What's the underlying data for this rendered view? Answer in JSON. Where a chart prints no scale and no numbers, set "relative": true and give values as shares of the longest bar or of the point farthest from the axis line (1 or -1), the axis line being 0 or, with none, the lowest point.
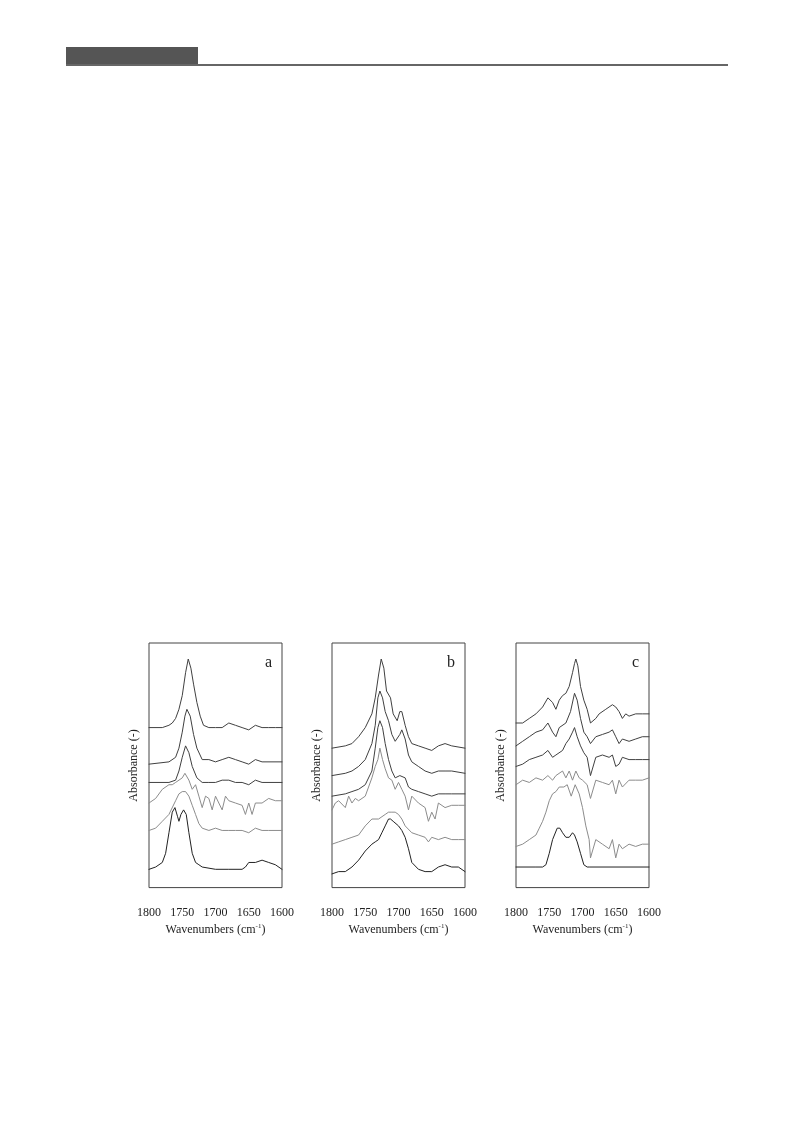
{
  "chart_data": [
    {
      "type": "line",
      "relative": true,
      "xlabel": "Wavenumbers (cm$^{-1}$)",
      "ylabel": "Absorbance (-)",
      "annotations": [
        "a"
      ],
      "xlim": [
        1800,
        1600
      ],
      "xticks": [
        1800,
        1750,
        1700,
        1650,
        1600
      ],
      "grid": false,
      "marker": "none",
      "line_style": "solid",
      "series": [
        {
          "color": "#404040",
          "x": [
            1800,
            1780,
            1770,
            1765,
            1760,
            1755,
            1750,
            1745,
            1741,
            1737,
            1733,
            1728,
            1723,
            1718,
            1710,
            1700,
            1690,
            1680,
            1670,
            1660,
            1650,
            1640,
            1630,
            1620,
            1610,
            1600
          ],
          "values": [
            0.7,
            0.7,
            0.71,
            0.72,
            0.74,
            0.78,
            0.84,
            0.94,
            1,
            0.96,
            0.89,
            0.81,
            0.75,
            0.71,
            0.7,
            0.7,
            0.7,
            0.72,
            0.71,
            0.7,
            0.69,
            0.71,
            0.7,
            0.7,
            0.7,
            0.7
          ]
        },
        {
          "color": "#404040",
          "x": [
            1800,
            1770,
            1760,
            1755,
            1750,
            1746,
            1743,
            1738,
            1733,
            1728,
            1720,
            1710,
            1700,
            1690,
            1680,
            1670,
            1660,
            1650,
            1640,
            1630,
            1600
          ],
          "values": [
            0.54,
            0.55,
            0.57,
            0.61,
            0.68,
            0.75,
            0.78,
            0.75,
            0.67,
            0.61,
            0.56,
            0.56,
            0.55,
            0.56,
            0.57,
            0.56,
            0.55,
            0.54,
            0.56,
            0.55,
            0.55
          ]
        },
        {
          "color": "#404040",
          "x": [
            1800,
            1770,
            1760,
            1755,
            1750,
            1745,
            1740,
            1735,
            1728,
            1720,
            1710,
            1700,
            1690,
            1680,
            1670,
            1660,
            1650,
            1640,
            1630,
            1600
          ],
          "values": [
            0.46,
            0.46,
            0.47,
            0.51,
            0.57,
            0.62,
            0.59,
            0.53,
            0.48,
            0.46,
            0.46,
            0.46,
            0.47,
            0.47,
            0.46,
            0.46,
            0.45,
            0.47,
            0.46,
            0.46
          ]
        },
        {
          "color": "#8c8c8c",
          "x": [
            1800,
            1790,
            1780,
            1770,
            1765,
            1760,
            1750,
            1746,
            1740,
            1735,
            1730,
            1725,
            1720,
            1715,
            1710,
            1705,
            1700,
            1695,
            1690,
            1685,
            1680,
            1670,
            1660,
            1655,
            1650,
            1645,
            1640,
            1630,
            1620,
            1610,
            1600
          ],
          "values": [
            0.37,
            0.39,
            0.43,
            0.45,
            0.45,
            0.46,
            0.48,
            0.5,
            0.47,
            0.43,
            0.45,
            0.4,
            0.35,
            0.4,
            0.39,
            0.34,
            0.4,
            0.37,
            0.34,
            0.4,
            0.38,
            0.37,
            0.36,
            0.32,
            0.37,
            0.32,
            0.37,
            0.37,
            0.39,
            0.38,
            0.38
          ]
        },
        {
          "color": "#8c8c8c",
          "x": [
            1800,
            1790,
            1780,
            1770,
            1760,
            1755,
            1750,
            1745,
            1740,
            1735,
            1730,
            1725,
            1720,
            1710,
            1700,
            1690,
            1680,
            1670,
            1660,
            1650,
            1640,
            1630,
            1620,
            1600
          ],
          "values": [
            0.25,
            0.26,
            0.29,
            0.32,
            0.38,
            0.41,
            0.42,
            0.42,
            0.4,
            0.36,
            0.32,
            0.28,
            0.26,
            0.25,
            0.26,
            0.25,
            0.25,
            0.25,
            0.25,
            0.24,
            0.26,
            0.25,
            0.25,
            0.25
          ]
        },
        {
          "color": "#222222",
          "x": [
            1800,
            1790,
            1780,
            1775,
            1770,
            1765,
            1761,
            1757,
            1755,
            1752,
            1748,
            1744,
            1740,
            1735,
            1730,
            1725,
            1720,
            1700,
            1680,
            1660,
            1655,
            1650,
            1640,
            1630,
            1620,
            1610,
            1600
          ],
          "values": [
            0.08,
            0.09,
            0.11,
            0.15,
            0.24,
            0.33,
            0.35,
            0.31,
            0.29,
            0.32,
            0.34,
            0.32,
            0.24,
            0.15,
            0.11,
            0.1,
            0.09,
            0.08,
            0.08,
            0.08,
            0.09,
            0.11,
            0.11,
            0.12,
            0.11,
            0.1,
            0.08
          ]
        }
      ]
    },
    {
      "type": "line",
      "relative": true,
      "xlabel": "Wavenumbers (cm$^{-1}$)",
      "ylabel": "Absorbance (-)",
      "annotations": [
        "b"
      ],
      "xlim": [
        1800,
        1600
      ],
      "xticks": [
        1800,
        1750,
        1700,
        1650,
        1600
      ],
      "grid": false,
      "marker": "none",
      "line_style": "solid",
      "series": [
        {
          "color": "#404040",
          "x": [
            1800,
            1780,
            1770,
            1760,
            1750,
            1740,
            1735,
            1730,
            1726,
            1722,
            1718,
            1712,
            1708,
            1702,
            1698,
            1695,
            1690,
            1685,
            1680,
            1670,
            1660,
            1650,
            1640,
            1630,
            1620,
            1600
          ],
          "values": [
            0.61,
            0.62,
            0.63,
            0.66,
            0.7,
            0.76,
            0.83,
            0.93,
            1,
            0.96,
            0.86,
            0.83,
            0.76,
            0.73,
            0.77,
            0.77,
            0.71,
            0.66,
            0.63,
            0.62,
            0.61,
            0.6,
            0.62,
            0.63,
            0.62,
            0.61
          ]
        },
        {
          "color": "#404040",
          "x": [
            1800,
            1780,
            1770,
            1760,
            1750,
            1740,
            1735,
            1731,
            1728,
            1724,
            1720,
            1715,
            1710,
            1705,
            1698,
            1695,
            1690,
            1685,
            1680,
            1670,
            1660,
            1650,
            1640,
            1630,
            1620,
            1600
          ],
          "values": [
            0.49,
            0.5,
            0.51,
            0.53,
            0.56,
            0.63,
            0.71,
            0.83,
            0.86,
            0.83,
            0.77,
            0.73,
            0.67,
            0.64,
            0.67,
            0.69,
            0.65,
            0.58,
            0.55,
            0.53,
            0.51,
            0.5,
            0.51,
            0.51,
            0.51,
            0.5
          ]
        },
        {
          "color": "#404040",
          "x": [
            1800,
            1780,
            1770,
            1760,
            1750,
            1740,
            1735,
            1731,
            1728,
            1724,
            1720,
            1715,
            1710,
            1705,
            1698,
            1690,
            1685,
            1680,
            1670,
            1660,
            1650,
            1640,
            1630,
            1620,
            1600
          ],
          "values": [
            0.4,
            0.41,
            0.42,
            0.43,
            0.45,
            0.51,
            0.61,
            0.7,
            0.73,
            0.7,
            0.63,
            0.56,
            0.51,
            0.48,
            0.49,
            0.48,
            0.44,
            0.43,
            0.42,
            0.41,
            0.4,
            0.41,
            0.41,
            0.41,
            0.41
          ]
        },
        {
          "color": "#8c8c8c",
          "x": [
            1800,
            1795,
            1790,
            1780,
            1775,
            1770,
            1765,
            1760,
            1750,
            1745,
            1740,
            1735,
            1731,
            1728,
            1724,
            1720,
            1715,
            1710,
            1705,
            1700,
            1695,
            1690,
            1685,
            1680,
            1670,
            1660,
            1655,
            1650,
            1645,
            1640,
            1630,
            1620,
            1610,
            1600
          ],
          "values": [
            0.34,
            0.37,
            0.38,
            0.35,
            0.4,
            0.37,
            0.39,
            0.38,
            0.4,
            0.44,
            0.48,
            0.53,
            0.56,
            0.61,
            0.56,
            0.52,
            0.48,
            0.47,
            0.43,
            0.46,
            0.43,
            0.4,
            0.34,
            0.4,
            0.37,
            0.35,
            0.29,
            0.33,
            0.3,
            0.37,
            0.35,
            0.36,
            0.36,
            0.36
          ]
        },
        {
          "color": "#8c8c8c",
          "x": [
            1800,
            1790,
            1780,
            1770,
            1760,
            1750,
            1740,
            1730,
            1720,
            1715,
            1710,
            1705,
            1700,
            1695,
            1690,
            1680,
            1670,
            1660,
            1655,
            1650,
            1640,
            1630,
            1620,
            1610,
            1600
          ],
          "values": [
            0.19,
            0.2,
            0.21,
            0.22,
            0.23,
            0.27,
            0.3,
            0.3,
            0.32,
            0.33,
            0.33,
            0.33,
            0.32,
            0.3,
            0.27,
            0.24,
            0.23,
            0.22,
            0.2,
            0.22,
            0.21,
            0.22,
            0.21,
            0.21,
            0.21
          ]
        },
        {
          "color": "#222222",
          "x": [
            1800,
            1790,
            1780,
            1770,
            1760,
            1750,
            1740,
            1735,
            1730,
            1725,
            1720,
            1715,
            1712,
            1708,
            1700,
            1695,
            1690,
            1685,
            1680,
            1670,
            1660,
            1650,
            1640,
            1630,
            1620,
            1610,
            1600
          ],
          "values": [
            0.06,
            0.07,
            0.07,
            0.09,
            0.12,
            0.16,
            0.19,
            0.2,
            0.21,
            0.24,
            0.27,
            0.3,
            0.3,
            0.29,
            0.27,
            0.25,
            0.22,
            0.17,
            0.11,
            0.08,
            0.07,
            0.07,
            0.09,
            0.1,
            0.09,
            0.09,
            0.07
          ]
        }
      ]
    },
    {
      "type": "line",
      "relative": true,
      "xlabel": "Wavenumbers (cm$^{-1}$)",
      "ylabel": "Absorbance (-)",
      "annotations": [
        "c"
      ],
      "xlim": [
        1800,
        1600
      ],
      "xticks": [
        1800,
        1750,
        1700,
        1650,
        1600
      ],
      "grid": false,
      "marker": "none",
      "line_style": "solid",
      "series": [
        {
          "color": "#404040",
          "x": [
            1800,
            1790,
            1780,
            1770,
            1760,
            1752,
            1745,
            1740,
            1735,
            1730,
            1725,
            1720,
            1715,
            1712,
            1710,
            1707,
            1703,
            1698,
            1693,
            1688,
            1680,
            1675,
            1665,
            1655,
            1650,
            1645,
            1640,
            1635,
            1630,
            1620,
            1610,
            1600
          ],
          "values": [
            0.72,
            0.72,
            0.74,
            0.76,
            0.79,
            0.83,
            0.81,
            0.78,
            0.82,
            0.84,
            0.85,
            0.88,
            0.94,
            0.98,
            1,
            0.97,
            0.88,
            0.82,
            0.78,
            0.72,
            0.74,
            0.76,
            0.78,
            0.8,
            0.79,
            0.77,
            0.74,
            0.76,
            0.75,
            0.76,
            0.76,
            0.76
          ]
        },
        {
          "color": "#404040",
          "x": [
            1800,
            1790,
            1780,
            1770,
            1760,
            1752,
            1745,
            1740,
            1735,
            1725,
            1718,
            1712,
            1708,
            1703,
            1698,
            1693,
            1688,
            1680,
            1670,
            1660,
            1655,
            1650,
            1645,
            1640,
            1630,
            1620,
            1610,
            1600
          ],
          "values": [
            0.62,
            0.64,
            0.66,
            0.68,
            0.69,
            0.72,
            0.68,
            0.66,
            0.7,
            0.72,
            0.77,
            0.85,
            0.82,
            0.74,
            0.68,
            0.66,
            0.63,
            0.66,
            0.67,
            0.68,
            0.69,
            0.66,
            0.63,
            0.65,
            0.64,
            0.65,
            0.66,
            0.66
          ]
        },
        {
          "color": "#404040",
          "x": [
            1800,
            1790,
            1780,
            1770,
            1760,
            1752,
            1745,
            1740,
            1730,
            1725,
            1720,
            1715,
            1712,
            1708,
            1703,
            1698,
            1693,
            1688,
            1680,
            1670,
            1660,
            1655,
            1650,
            1645,
            1640,
            1630,
            1620,
            1610,
            1600
          ],
          "values": [
            0.53,
            0.54,
            0.56,
            0.57,
            0.58,
            0.6,
            0.57,
            0.58,
            0.6,
            0.63,
            0.65,
            0.68,
            0.7,
            0.66,
            0.62,
            0.59,
            0.57,
            0.49,
            0.57,
            0.58,
            0.57,
            0.58,
            0.53,
            0.54,
            0.57,
            0.56,
            0.56,
            0.56,
            0.56
          ]
        },
        {
          "color": "#8c8c8c",
          "x": [
            1800,
            1790,
            1780,
            1770,
            1760,
            1752,
            1745,
            1740,
            1730,
            1725,
            1720,
            1715,
            1710,
            1705,
            1700,
            1693,
            1688,
            1680,
            1670,
            1660,
            1655,
            1650,
            1645,
            1640,
            1630,
            1620,
            1610,
            1600
          ],
          "values": [
            0.45,
            0.47,
            0.46,
            0.48,
            0.47,
            0.49,
            0.47,
            0.49,
            0.51,
            0.48,
            0.51,
            0.47,
            0.51,
            0.48,
            0.47,
            0.45,
            0.39,
            0.47,
            0.46,
            0.45,
            0.47,
            0.41,
            0.47,
            0.44,
            0.47,
            0.47,
            0.47,
            0.48
          ]
        },
        {
          "color": "#8c8c8c",
          "x": [
            1800,
            1790,
            1780,
            1770,
            1765,
            1760,
            1755,
            1750,
            1745,
            1740,
            1735,
            1728,
            1723,
            1717,
            1711,
            1705,
            1700,
            1695,
            1690,
            1688,
            1680,
            1670,
            1660,
            1655,
            1650,
            1645,
            1640,
            1630,
            1620,
            1610,
            1600
          ],
          "values": [
            0.18,
            0.19,
            0.21,
            0.23,
            0.26,
            0.29,
            0.33,
            0.38,
            0.41,
            0.42,
            0.44,
            0.44,
            0.45,
            0.4,
            0.45,
            0.41,
            0.35,
            0.27,
            0.21,
            0.13,
            0.21,
            0.19,
            0.17,
            0.21,
            0.13,
            0.19,
            0.17,
            0.19,
            0.18,
            0.19,
            0.19
          ]
        },
        {
          "color": "#222222",
          "x": [
            1800,
            1770,
            1760,
            1755,
            1750,
            1745,
            1738,
            1734,
            1730,
            1725,
            1720,
            1715,
            1712,
            1708,
            1703,
            1698,
            1693,
            1690,
            1600
          ],
          "values": [
            0.09,
            0.09,
            0.09,
            0.1,
            0.15,
            0.21,
            0.26,
            0.26,
            0.24,
            0.22,
            0.22,
            0.24,
            0.23,
            0.2,
            0.15,
            0.1,
            0.09,
            0.09,
            0.09
          ]
        }
      ]
    }
  ]
}
